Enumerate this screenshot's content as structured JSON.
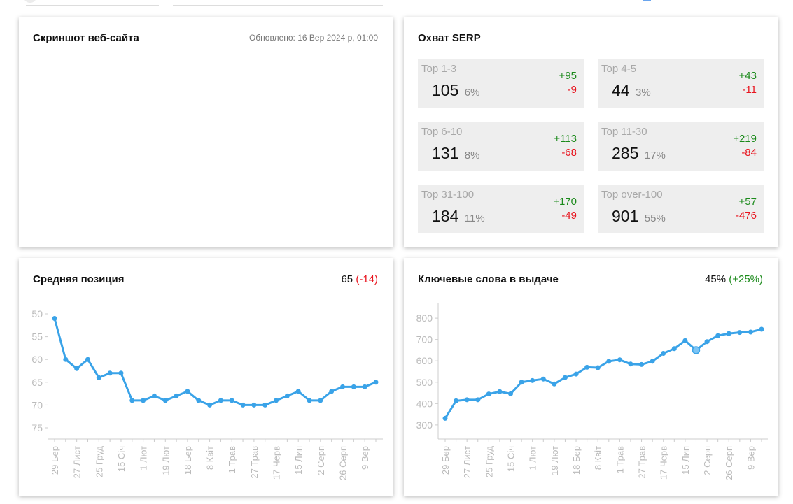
{
  "screenshot_card": {
    "title": "Скриншот веб-сайта",
    "updated": "Обновлено: 16 Вер 2024 р, 01:00"
  },
  "serp_card": {
    "title": "Охват SERP",
    "tiles": [
      {
        "label": "Top 1-3",
        "value": "105",
        "pct": "6%",
        "up": "+95",
        "down": "-9"
      },
      {
        "label": "Top 4-5",
        "value": "44",
        "pct": "3%",
        "up": "+43",
        "down": "-11"
      },
      {
        "label": "Top 6-10",
        "value": "131",
        "pct": "8%",
        "up": "+113",
        "down": "-68"
      },
      {
        "label": "Top 11-30",
        "value": "285",
        "pct": "17%",
        "up": "+219",
        "down": "-84"
      },
      {
        "label": "Top 31-100",
        "value": "184",
        "pct": "11%",
        "up": "+170",
        "down": "-49"
      },
      {
        "label": "Top over-100",
        "value": "901",
        "pct": "55%",
        "up": "+57",
        "down": "-476"
      }
    ]
  },
  "avg_position_card": {
    "title": "Средняя позиция",
    "value": "65",
    "delta": "(-14)"
  },
  "keywords_card": {
    "title": "Ключевые слова в выдаче",
    "value": "45%",
    "delta": "(+25%)"
  },
  "colors": {
    "line": "#3aa3e8",
    "positive": "#1b8a1b",
    "negative": "#e8141e"
  },
  "chart_data": [
    {
      "type": "line",
      "title": "Средняя позиция",
      "xlabel": "",
      "ylabel": "",
      "ylim": [
        50,
        75
      ],
      "y_inverted": true,
      "yticks": [
        50,
        55,
        60,
        65,
        70,
        75
      ],
      "xtick_labels": [
        "29 Бер",
        "27 Лист",
        "25 Груд",
        "15 Січ",
        "1 Лют",
        "19 Лют",
        "18 Бер",
        "8 Квіт",
        "1 Трав",
        "27 Трав",
        "17 Черв",
        "15 Лип",
        "2 Серп",
        "26 Серп",
        "9 Вер"
      ],
      "grid": false,
      "values": [
        51,
        60,
        62,
        60,
        64,
        63,
        63,
        69,
        69,
        68,
        69,
        68,
        67,
        69,
        70,
        69,
        69,
        70,
        70,
        70,
        69,
        68,
        67,
        69,
        69,
        67,
        66,
        66,
        66,
        65
      ]
    },
    {
      "type": "line",
      "title": "Ключевые слова в выдаче",
      "xlabel": "",
      "ylabel": "",
      "ylim": [
        280,
        820
      ],
      "yticks": [
        300,
        400,
        500,
        600,
        700,
        800
      ],
      "xtick_labels": [
        "29 Бер",
        "27 Лист",
        "25 Груд",
        "15 Січ",
        "1 Лют",
        "19 Лют",
        "18 Бер",
        "8 Квіт",
        "1 Трав",
        "27 Трав",
        "17 Черв",
        "15 Лип",
        "2 Серп",
        "26 Серп",
        "9 Вер"
      ],
      "grid": false,
      "highlighted_index": 23,
      "values": [
        331,
        413,
        418,
        418,
        445,
        456,
        446,
        500,
        508,
        515,
        492,
        522,
        538,
        570,
        568,
        598,
        605,
        585,
        583,
        598,
        635,
        657,
        695,
        650,
        690,
        718,
        728,
        733,
        735,
        748
      ]
    }
  ]
}
